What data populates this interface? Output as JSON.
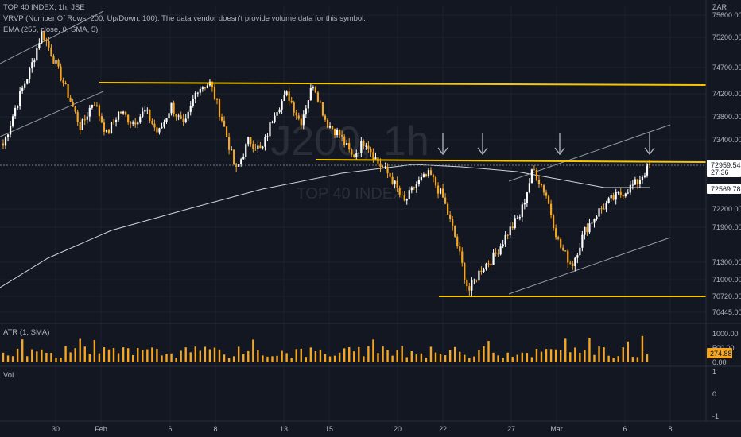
{
  "legend": {
    "symbol_line": "TOP 40 INDEX, 1h, JSE",
    "vrvp_line": "VRVP (Number Of Rows, 200, Up/Down, 100): The data vendor doesn't provide volume data for this symbol.",
    "ema_line": "EMA (255, close, 0, SMA, 5)"
  },
  "watermark": {
    "big": "J200, 1h",
    "small": "TOP 40 INDEX"
  },
  "currency": "ZAR",
  "colors": {
    "background": "#131722",
    "up": "#ffffff",
    "down": "#f5a623",
    "level": "#f7c600",
    "ema": "#d1d4dc",
    "grid": "#1e222d",
    "atr": "#f5a623"
  },
  "price_axis": {
    "ticks": [
      "75600.00",
      "75200.00",
      "74700.00",
      "74200.00",
      "73800.00",
      "73400.00",
      "72200.00",
      "71900.00",
      "71300.00",
      "71000.00",
      "70720.00",
      "70445.00"
    ],
    "last_price": "72959.54",
    "countdown": "27:36",
    "ema_value": "72569.78"
  },
  "time_axis": [
    "30",
    "Feb",
    "6",
    "8",
    "13",
    "15",
    "20",
    "22",
    "27",
    "Mar",
    "6",
    "8"
  ],
  "atr_pane": {
    "label": "ATR (1, SMA)",
    "ticks": [
      "1000.00",
      "500.00",
      "0.00"
    ],
    "value": "274.88"
  },
  "vol_pane": {
    "label": "Vol",
    "ticks": [
      "1",
      "0",
      "-1"
    ]
  },
  "chart_data": {
    "type": "candlestick",
    "symbol": "TOP 40 INDEX",
    "interval": "1h",
    "exchange": "JSE",
    "currency": "ZAR",
    "ylim": [
      70445,
      75600
    ],
    "horizontal_levels": [
      74350,
      72959.54,
      70720
    ],
    "ema_255_end": 72569.78,
    "arrows_at": [
      "22",
      "22",
      "Mar",
      "8"
    ],
    "close_path": [
      73300,
      74000,
      74600,
      75300,
      74800,
      74200,
      73600,
      74100,
      73500,
      73900,
      73700,
      73900,
      73500,
      74000,
      73600,
      74300,
      74400,
      73700,
      72850,
      73400,
      73200,
      73900,
      74200,
      73700,
      74400,
      73700,
      73500,
      73100,
      73400,
      73000,
      72750,
      72300,
      72650,
      72800,
      72400,
      71700,
      70800,
      71200,
      71400,
      71800,
      72100,
      72900,
      72450,
      71600,
      71250,
      71850,
      72150,
      72350,
      72500,
      72650,
      72959.54
    ],
    "atr_last": 274.88
  }
}
